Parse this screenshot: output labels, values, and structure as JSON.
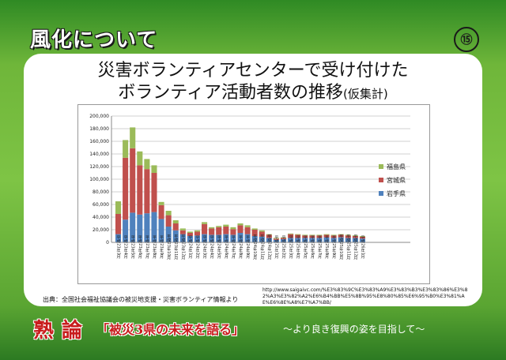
{
  "header": {
    "title": "風化について",
    "page_number": "⑮"
  },
  "slide": {
    "title_line1": "災害ボランティアセンターで受け付けた",
    "title_line2": "ボランティア活動者数の推移",
    "title_suffix": "(仮集計)"
  },
  "source": {
    "text": "出典：全国社会福祉協議会の被災地支援・災害ボランティア情報より",
    "url": "http://www.saigaivc.com/%E3%83%9C%E3%83%A9%E3%83%B3%E3%83%86%E3%82%A3%E3%82%A2%E6%B4%BB%E5%8B%95%E8%80%85%E6%95%B0%E3%81%AE%E6%8E%A8%E7%A7%BB/"
  },
  "footer": {
    "prefix1": "熟",
    "prefix2": "論",
    "main": "「被災3県の未来を語る」",
    "tail": "～より良き復興の姿を目指して～"
  },
  "colors": {
    "iwate": "#4f81bd",
    "miyagi": "#c0504d",
    "fukushima": "#9bbb59"
  },
  "chart_data": {
    "type": "bar",
    "stacked": true,
    "ylim": [
      0,
      200000
    ],
    "yticks": [
      "0",
      "20,000",
      "40,000",
      "60,000",
      "80,000",
      "100,000",
      "120,000",
      "140,000",
      "160,000",
      "180,000",
      "200,000"
    ],
    "grid": true,
    "legend_position": "right",
    "categories": [
      "平成23年3月",
      "平成23年4月",
      "平成23年5月",
      "平成23年6月",
      "平成23年7月",
      "平成23年8月",
      "平成23年9月",
      "平成23年10月",
      "平成23年11月",
      "平成23年12月",
      "平成24年1月",
      "平成24年2月",
      "平成24年3月",
      "平成24年4月",
      "平成24年5月",
      "平成24年6月",
      "平成24年7月",
      "平成24年8月",
      "平成24年9月",
      "平成24年10月",
      "平成24年11月",
      "平成24年12月",
      "平成25年1月",
      "平成25年2月",
      "平成25年3月",
      "平成25年4月",
      "平成25年5月",
      "平成25年6月",
      "平成25年7月",
      "平成25年8月",
      "平成25年9月",
      "平成25年10月",
      "平成25年11月",
      "平成25年12月",
      "平成26年1月"
    ],
    "series": [
      {
        "name": "岩手県",
        "values": [
          13000,
          36000,
          47000,
          44000,
          46000,
          48000,
          37000,
          25000,
          19000,
          13000,
          10000,
          11000,
          13000,
          12000,
          12000,
          13000,
          12000,
          15000,
          13000,
          10000,
          9000,
          7000,
          4000,
          5000,
          7000,
          7000,
          7000,
          7000,
          7000,
          8000,
          7000,
          8000,
          7000,
          7000,
          6000
        ]
      },
      {
        "name": "宮城県",
        "values": [
          32000,
          98000,
          102000,
          78000,
          70000,
          62000,
          22000,
          18000,
          11000,
          6000,
          5000,
          6000,
          16000,
          10000,
          12000,
          12000,
          9000,
          12000,
          11000,
          10000,
          8000,
          5000,
          2000,
          2000,
          6000,
          5000,
          4000,
          4000,
          4000,
          4000,
          4000,
          4000,
          4000,
          3000,
          3000
        ]
      },
      {
        "name": "福島県",
        "values": [
          20000,
          28000,
          33000,
          22000,
          16000,
          12000,
          5000,
          7000,
          5000,
          3000,
          2000,
          2000,
          3000,
          2000,
          2000,
          3000,
          3000,
          3000,
          3000,
          2000,
          2000,
          1000,
          1000,
          1000,
          1000,
          1000,
          1000,
          1000,
          1000,
          1000,
          1000,
          1000,
          1000,
          1000,
          1000
        ]
      }
    ]
  }
}
